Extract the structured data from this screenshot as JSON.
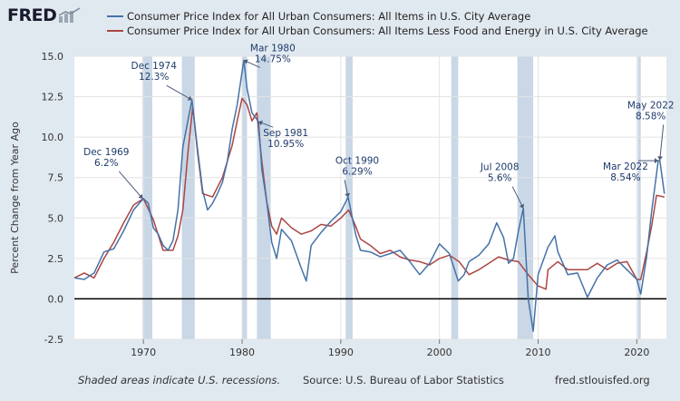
{
  "logo": {
    "text": "FRED"
  },
  "colors": {
    "cpi_all": "#4572a7",
    "cpi_core": "#aa4643",
    "recession": "#c9d7e6",
    "background": "#e1e9f0",
    "plot_bg": "#ffffff"
  },
  "footer": {
    "note": "Shaded areas indicate U.S. recessions.",
    "source": "Source: U.S. Bureau of Labor Statistics",
    "site": "fred.stlouisfed.org"
  },
  "chart_data": {
    "type": "line",
    "title": "",
    "ylabel": "Percent Change from Year Ago",
    "xlabel": "",
    "xlim": [
      1963,
      2023
    ],
    "ylim": [
      -2.5,
      15.0
    ],
    "x_ticks": [
      1970,
      1980,
      1990,
      2000,
      2010,
      2020
    ],
    "x_tick_labels": [
      "1970",
      "1980",
      "1990",
      "2000",
      "2010",
      "2020"
    ],
    "y_ticks": [
      -2.5,
      0.0,
      2.5,
      5.0,
      7.5,
      10.0,
      12.5,
      15.0
    ],
    "y_tick_labels": [
      "-2.5",
      "0.0",
      "2.5",
      "5.0",
      "7.5",
      "10.0",
      "12.5",
      "15.0"
    ],
    "grid": true,
    "legend_position": "top",
    "recessions": [
      [
        1969.9,
        1970.9
      ],
      [
        1973.9,
        1975.2
      ],
      [
        1980.0,
        1980.5
      ],
      [
        1981.5,
        1982.9
      ],
      [
        1990.5,
        1991.2
      ],
      [
        2001.2,
        2001.9
      ],
      [
        2007.9,
        2009.5
      ],
      [
        2020.1,
        2020.4
      ]
    ],
    "series": [
      {
        "name": "Consumer Price Index for All Urban Consumers: All Items in U.S. City Average",
        "x": [
          1963,
          1964,
          1965,
          1966,
          1967,
          1968,
          1969,
          1970,
          1970.5,
          1971,
          1971.5,
          1972,
          1972.5,
          1973,
          1973.5,
          1974,
          1974.5,
          1974.92,
          1975.5,
          1976,
          1976.5,
          1977,
          1977.5,
          1978,
          1978.5,
          1979,
          1979.5,
          1980.17,
          1980.5,
          1981,
          1981.67,
          1982,
          1982.5,
          1983,
          1983.5,
          1984,
          1985,
          1986,
          1986.5,
          1987,
          1988,
          1989,
          1990,
          1990.75,
          1991.5,
          1992,
          1993,
          1994,
          1995,
          1996,
          1997,
          1998,
          1999,
          2000,
          2001,
          2001.9,
          2002.5,
          2003,
          2004,
          2005,
          2005.8,
          2006.5,
          2007,
          2007.5,
          2008,
          2008.5,
          2009,
          2009.5,
          2010,
          2011,
          2011.7,
          2012,
          2013,
          2014,
          2015,
          2016,
          2017,
          2018,
          2019,
          2020,
          2020.4,
          2021,
          2021.5,
          2022.17,
          2022.33,
          2022.8
        ],
        "y": [
          1.3,
          1.2,
          1.6,
          2.9,
          3.1,
          4.2,
          5.5,
          6.2,
          5.9,
          4.4,
          4.0,
          3.3,
          3.0,
          3.6,
          5.5,
          9.4,
          11.0,
          12.3,
          9.2,
          6.7,
          5.5,
          5.9,
          6.5,
          7.2,
          8.5,
          10.5,
          12.0,
          14.75,
          13.0,
          11.5,
          10.95,
          8.0,
          6.0,
          3.5,
          2.5,
          4.3,
          3.6,
          1.9,
          1.1,
          3.3,
          4.1,
          4.8,
          5.4,
          6.29,
          4.0,
          3.0,
          2.9,
          2.6,
          2.8,
          3.0,
          2.3,
          1.5,
          2.2,
          3.4,
          2.8,
          1.1,
          1.5,
          2.3,
          2.7,
          3.4,
          4.7,
          3.8,
          2.2,
          2.5,
          4.2,
          5.6,
          0.0,
          -2.0,
          1.5,
          3.2,
          3.9,
          2.9,
          1.5,
          1.6,
          0.1,
          1.3,
          2.1,
          2.4,
          1.8,
          1.2,
          0.3,
          2.6,
          5.4,
          8.54,
          8.58,
          6.5
        ]
      },
      {
        "name": "Consumer Price Index for All Urban Consumers: All Items Less Food and Energy in U.S. City Average",
        "x": [
          1963,
          1964,
          1965,
          1966,
          1967,
          1968,
          1969,
          1970,
          1971,
          1972,
          1973,
          1973.5,
          1974,
          1974.5,
          1975,
          1975.5,
          1976,
          1977,
          1978,
          1979,
          1979.5,
          1980,
          1980.5,
          1981,
          1981.5,
          1982,
          1982.5,
          1983,
          1983.5,
          1984,
          1985,
          1986,
          1987,
          1988,
          1989,
          1990,
          1990.8,
          1991.5,
          1992,
          1993,
          1994,
          1995,
          1996,
          1997,
          1998,
          1999,
          2000,
          2001,
          2002,
          2003,
          2004,
          2005,
          2006,
          2007,
          2008,
          2009,
          2010,
          2010.8,
          2011,
          2012,
          2013,
          2014,
          2015,
          2016,
          2017,
          2018,
          2019,
          2020,
          2020.4,
          2021,
          2021.5,
          2022,
          2022.8
        ],
        "y": [
          1.3,
          1.6,
          1.3,
          2.5,
          3.5,
          4.7,
          5.8,
          6.2,
          4.9,
          3.0,
          3.0,
          3.9,
          5.5,
          9.0,
          11.9,
          9.0,
          6.5,
          6.3,
          7.5,
          9.5,
          11.0,
          12.4,
          12.0,
          11.0,
          11.5,
          8.5,
          6.0,
          4.5,
          4.0,
          5.0,
          4.4,
          4.0,
          4.2,
          4.6,
          4.5,
          5.0,
          5.5,
          4.5,
          3.7,
          3.3,
          2.8,
          3.0,
          2.6,
          2.4,
          2.3,
          2.1,
          2.5,
          2.7,
          2.3,
          1.5,
          1.8,
          2.2,
          2.6,
          2.4,
          2.3,
          1.5,
          0.8,
          0.6,
          1.8,
          2.3,
          1.8,
          1.8,
          1.8,
          2.2,
          1.8,
          2.2,
          2.3,
          1.2,
          1.2,
          2.9,
          4.5,
          6.4,
          6.3
        ]
      }
    ],
    "annotations": [
      {
        "label": "Dec 1969",
        "value": "6.2%",
        "x": 1969.92,
        "y": 6.2
      },
      {
        "label": "Dec 1974",
        "value": "12.3%",
        "x": 1974.92,
        "y": 12.3
      },
      {
        "label": "Mar 1980",
        "value": "14.75%",
        "x": 1980.17,
        "y": 14.75
      },
      {
        "label": "Sep 1981",
        "value": "10.95%",
        "x": 1981.67,
        "y": 10.95
      },
      {
        "label": "Oct 1990",
        "value": "6.29%",
        "x": 1990.75,
        "y": 6.29
      },
      {
        "label": "Jul 2008",
        "value": "5.6%",
        "x": 2008.5,
        "y": 5.6
      },
      {
        "label": "Mar 2022",
        "value": "8.54%",
        "x": 2022.17,
        "y": 8.54
      },
      {
        "label": "May 2022",
        "value": "8.58%",
        "x": 2022.33,
        "y": 8.58
      }
    ]
  }
}
